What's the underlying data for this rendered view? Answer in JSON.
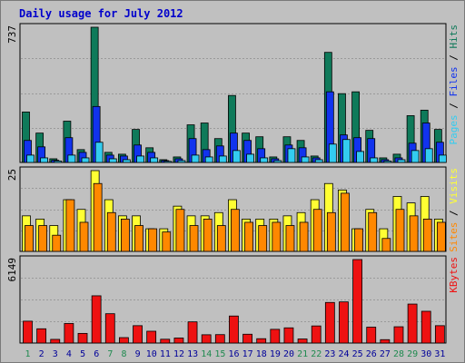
{
  "title": "Daily usage for July 2012",
  "colors": {
    "hits": "#0f7a5a",
    "files": "#1133ee",
    "pages": "#33ccf0",
    "visits": "#ffff33",
    "sites": "#ff8800",
    "kbytes": "#ee1111",
    "weekend_label": "#1f8a4f",
    "weekday_label": "#000099"
  },
  "chart_data": [
    {
      "type": "bar",
      "title": "",
      "categories": [
        "1",
        "2",
        "3",
        "4",
        "5",
        "6",
        "7",
        "8",
        "9",
        "10",
        "11",
        "12",
        "13",
        "14",
        "15",
        "16",
        "17",
        "18",
        "19",
        "20",
        "21",
        "22",
        "23",
        "24",
        "25",
        "26",
        "27",
        "28",
        "29",
        "30",
        "31"
      ],
      "weekend_days": [
        "1",
        "7",
        "8",
        "14",
        "15",
        "21",
        "22",
        "28",
        "29"
      ],
      "ymax_label": "737",
      "ylim": [
        0,
        737
      ],
      "grid": true,
      "legend": [
        "Pages",
        "Files",
        "Hits"
      ],
      "series": [
        {
          "name": "Hits",
          "values": [
            275,
            160,
            20,
            225,
            70,
            737,
            55,
            45,
            180,
            80,
            15,
            30,
            205,
            215,
            130,
            365,
            160,
            140,
            30,
            140,
            120,
            35,
            600,
            375,
            385,
            175,
            25,
            45,
            255,
            285,
            180
          ]
        },
        {
          "name": "Files",
          "values": [
            120,
            85,
            12,
            135,
            55,
            305,
            40,
            35,
            95,
            55,
            10,
            20,
            130,
            70,
            90,
            160,
            120,
            75,
            20,
            95,
            80,
            25,
            385,
            150,
            135,
            130,
            15,
            25,
            105,
            215,
            110
          ]
        },
        {
          "name": "Pages",
          "values": [
            40,
            25,
            8,
            40,
            25,
            110,
            20,
            15,
            35,
            25,
            6,
            10,
            40,
            30,
            35,
            65,
            45,
            25,
            10,
            75,
            30,
            15,
            100,
            125,
            60,
            25,
            8,
            15,
            65,
            75,
            40
          ]
        }
      ]
    },
    {
      "type": "bar",
      "title": "",
      "categories": [
        "1",
        "2",
        "3",
        "4",
        "5",
        "6",
        "7",
        "8",
        "9",
        "10",
        "11",
        "12",
        "13",
        "14",
        "15",
        "16",
        "17",
        "18",
        "19",
        "20",
        "21",
        "22",
        "23",
        "24",
        "25",
        "26",
        "27",
        "28",
        "29",
        "30",
        "31"
      ],
      "ymax_label": "25",
      "ylim": [
        0,
        25
      ],
      "grid": true,
      "legend": [
        "Sites",
        "/",
        "Visits"
      ],
      "series": [
        {
          "name": "Visits",
          "values": [
            11,
            10,
            8,
            16,
            13,
            25,
            16,
            11,
            11,
            7,
            7,
            14,
            11,
            11,
            12,
            16,
            10,
            10,
            10,
            11,
            12,
            16,
            21,
            19,
            7,
            13,
            7,
            17,
            15,
            17,
            10
          ]
        },
        {
          "name": "Sites",
          "values": [
            8,
            8,
            5,
            16,
            9,
            21,
            12,
            10,
            8,
            7,
            6,
            13,
            8,
            10,
            8,
            13,
            9,
            8,
            9,
            8,
            9,
            13,
            12,
            18,
            7,
            12,
            4,
            13,
            11,
            10,
            9
          ]
        }
      ]
    },
    {
      "type": "bar",
      "title": "",
      "categories": [
        "1",
        "2",
        "3",
        "4",
        "5",
        "6",
        "7",
        "8",
        "9",
        "10",
        "11",
        "12",
        "13",
        "14",
        "15",
        "16",
        "17",
        "18",
        "19",
        "20",
        "21",
        "22",
        "23",
        "24",
        "25",
        "26",
        "27",
        "28",
        "29",
        "30",
        "31"
      ],
      "ymax_label": "6149",
      "ylim": [
        0,
        6149
      ],
      "grid": true,
      "legend": [
        "KBytes"
      ],
      "series": [
        {
          "name": "KBytes",
          "values": [
            1610,
            1050,
            270,
            1440,
            710,
            3480,
            2160,
            400,
            1280,
            870,
            280,
            370,
            1560,
            610,
            620,
            1990,
            650,
            320,
            1010,
            1120,
            300,
            1260,
            2990,
            3030,
            6149,
            1170,
            250,
            1200,
            2870,
            2340,
            1280
          ]
        }
      ]
    }
  ]
}
